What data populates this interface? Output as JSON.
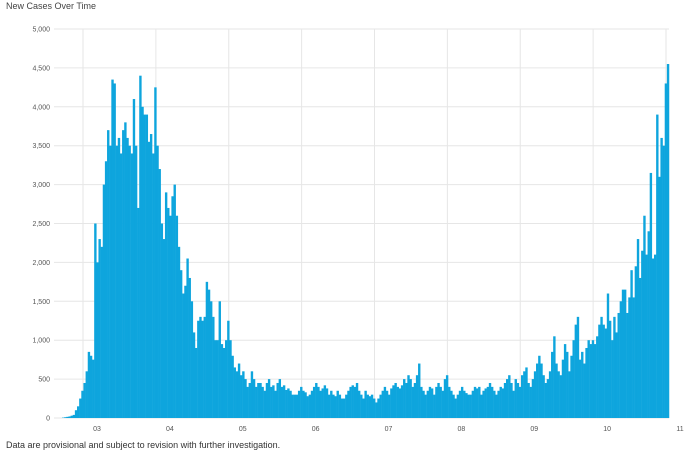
{
  "title": "New Cases Over Time",
  "footnote": "Data are provisional and subject to revision with further investigation.",
  "colors": {
    "bar": "#0ea5dd",
    "grid": "#e6e6e6",
    "axis_text": "#555555"
  },
  "chart_data": {
    "type": "bar",
    "title": "New Cases Over Time",
    "xlabel": "",
    "ylabel": "",
    "ylim": [
      0,
      5000
    ],
    "y_ticks": [
      "0",
      "500",
      "1,000",
      "1,500",
      "2,000",
      "2,500",
      "3,000",
      "3,500",
      "4,000",
      "4,500",
      "5,000"
    ],
    "x_ticks": [
      "03",
      "04",
      "05",
      "06",
      "07",
      "08",
      "09",
      "10",
      "11"
    ],
    "grid": true,
    "values": [
      5,
      10,
      15,
      20,
      30,
      40,
      100,
      150,
      250,
      350,
      450,
      600,
      850,
      800,
      750,
      2500,
      2000,
      2300,
      2200,
      3000,
      3300,
      3700,
      3500,
      4350,
      4300,
      3500,
      3600,
      3400,
      3700,
      3800,
      3600,
      3500,
      3400,
      4100,
      3500,
      2700,
      4400,
      4000,
      3900,
      3900,
      3550,
      3650,
      3400,
      4250,
      3500,
      3200,
      2500,
      2300,
      2900,
      2700,
      2600,
      2850,
      3000,
      2600,
      2200,
      1900,
      1600,
      1700,
      2050,
      1800,
      1500,
      1100,
      900,
      1250,
      1300,
      1250,
      1300,
      1750,
      1650,
      1500,
      1300,
      1000,
      1000,
      1500,
      950,
      900,
      1000,
      1250,
      1000,
      800,
      650,
      600,
      700,
      550,
      600,
      500,
      400,
      450,
      600,
      500,
      400,
      450,
      450,
      400,
      350,
      450,
      500,
      400,
      420,
      350,
      450,
      500,
      400,
      420,
      360,
      380,
      350,
      300,
      300,
      300,
      350,
      400,
      350,
      330,
      280,
      300,
      350,
      400,
      450,
      400,
      350,
      380,
      420,
      380,
      300,
      350,
      300,
      280,
      350,
      300,
      250,
      250,
      300,
      350,
      400,
      420,
      400,
      450,
      350,
      300,
      250,
      350,
      300,
      280,
      300,
      250,
      200,
      250,
      300,
      350,
      400,
      350,
      300,
      380,
      420,
      450,
      400,
      380,
      420,
      500,
      450,
      550,
      500,
      400,
      450,
      550,
      700,
      400,
      350,
      300,
      350,
      400,
      380,
      300,
      400,
      450,
      400,
      350,
      500,
      550,
      400,
      350,
      300,
      250,
      300,
      350,
      400,
      350,
      320,
      300,
      300,
      350,
      400,
      380,
      400,
      300,
      350,
      380,
      400,
      450,
      400,
      350,
      300,
      350,
      400,
      380,
      450,
      500,
      550,
      450,
      350,
      500,
      450,
      400,
      550,
      600,
      650,
      450,
      400,
      500,
      600,
      700,
      800,
      700,
      550,
      450,
      500,
      600,
      850,
      1050,
      700,
      600,
      550,
      750,
      950,
      850,
      600,
      800,
      1000,
      1200,
      1300,
      750,
      850,
      700,
      900,
      1000,
      950,
      1000,
      950,
      1050,
      1200,
      1300,
      1200,
      1150,
      1600,
      1250,
      1000,
      1300,
      1100,
      1350,
      1500,
      1650,
      1650,
      1350,
      1550,
      1900,
      1550,
      1950,
      2300,
      1800,
      2150,
      2600,
      2100,
      2400,
      3150,
      2050,
      2100,
      3900,
      3100,
      3600,
      3500,
      4300,
      4550
    ]
  }
}
